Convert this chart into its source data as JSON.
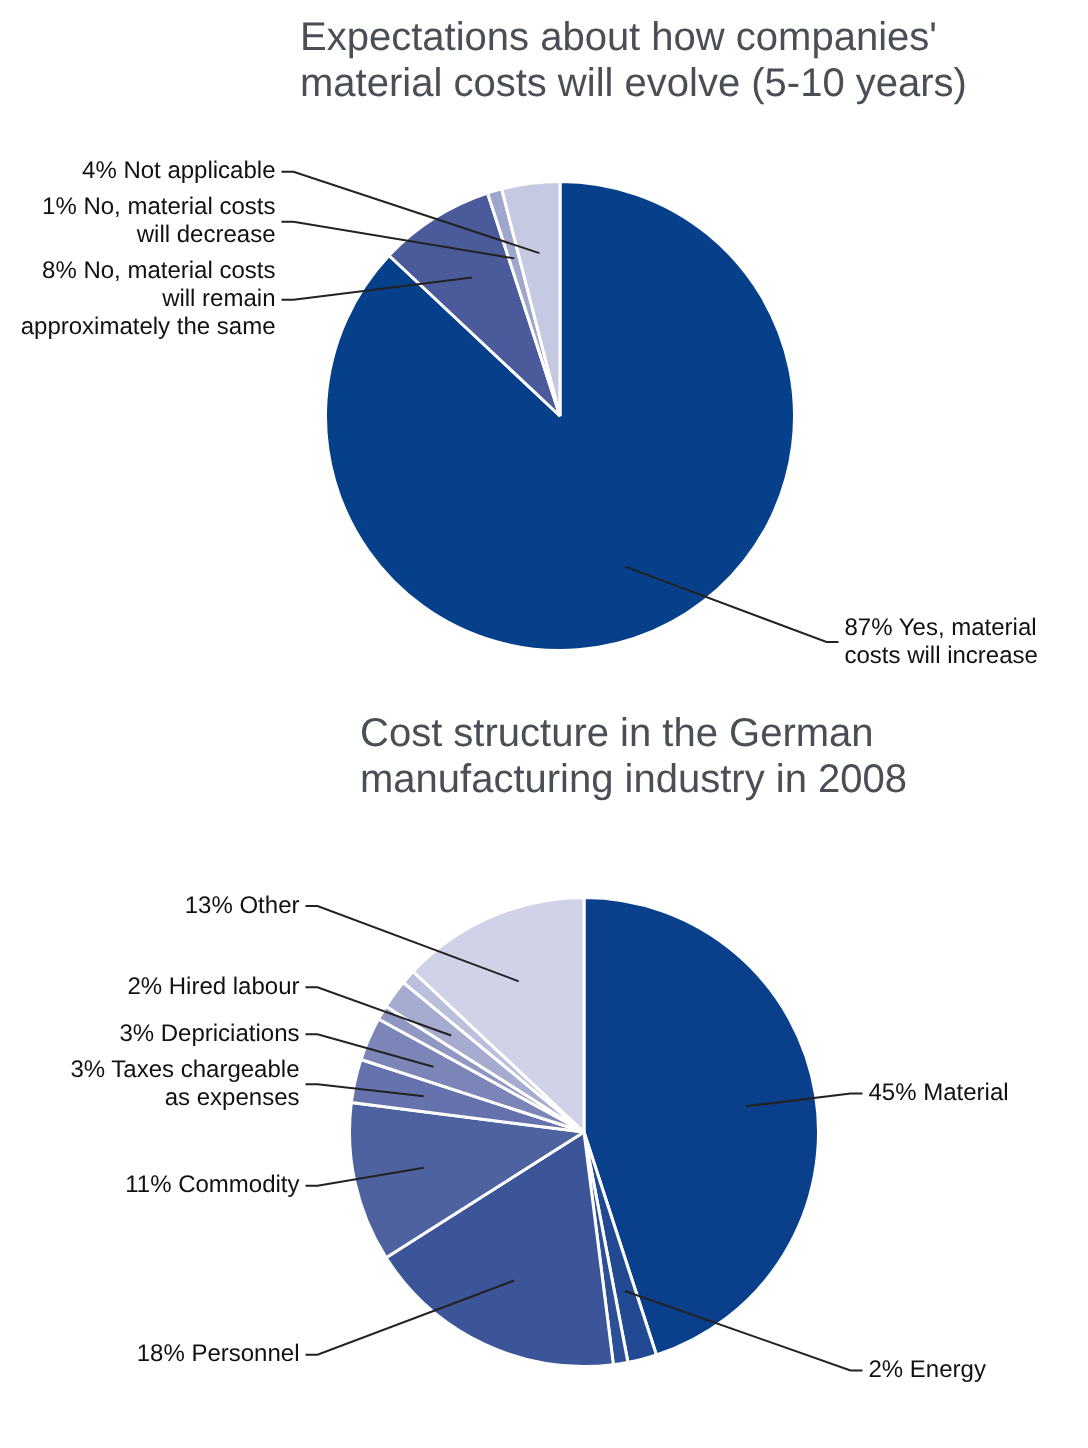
{
  "chart_data": [
    {
      "type": "pie",
      "title": "Expectations about how companies' material costs will evolve (5-10 years)",
      "categories": [
        "87% Yes, material costs will increase",
        "8% No, material costs will remain approximately the same",
        "1% No, material costs will decrease",
        "4% Not applicable"
      ],
      "values": [
        87,
        8,
        1,
        4
      ],
      "colors": [
        "#063f8a",
        "#4a5a9a",
        "#9ea6cc",
        "#c5c9e2"
      ]
    },
    {
      "type": "pie",
      "title": "Cost structure in the German manufacturing industry in 2008",
      "categories": [
        "45% Material",
        "2% Energy",
        null,
        "18% Personnel",
        "11% Commodity",
        "3% Taxes chargeable as expenses",
        "3% Depriciations",
        null,
        "2% Hired labour",
        null,
        "13% Other"
      ],
      "values": [
        45,
        2,
        1,
        18,
        11,
        3,
        3,
        1,
        2,
        1,
        13
      ],
      "colors": [
        "#0a3f8c",
        "#224a92",
        "#2c4f95",
        "#3c5599",
        "#4e62a0",
        "#6672ad",
        "#7c85b8",
        "#9097c3",
        "#a6abd0",
        "#babfdc",
        "#d0d3e8"
      ]
    }
  ]
}
